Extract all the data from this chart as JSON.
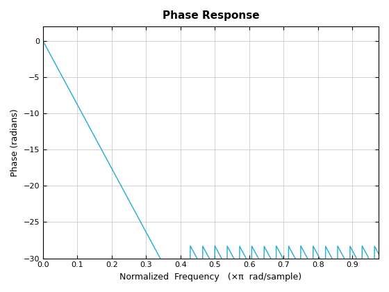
{
  "title": "Phase Response",
  "xlabel": "Normalized  Frequency   (×π  rad/sample)",
  "ylabel": "Phase (radians)",
  "line_color": "#1EABD4",
  "line_width": 1.0,
  "ylim": [
    -30,
    2
  ],
  "xlim": [
    0,
    0.9765625
  ],
  "yticks": [
    0,
    -5,
    -10,
    -15,
    -20,
    -25,
    -30
  ],
  "xticks": [
    0,
    0.1,
    0.2,
    0.3,
    0.4,
    0.5,
    0.6,
    0.7,
    0.8,
    0.9
  ],
  "background_color": "#ffffff",
  "grid_color": "#c0c0c0",
  "figsize": [
    5.6,
    4.2
  ],
  "dpi": 100,
  "filter_numtaps": 9,
  "filter_cutoff": 0.33
}
